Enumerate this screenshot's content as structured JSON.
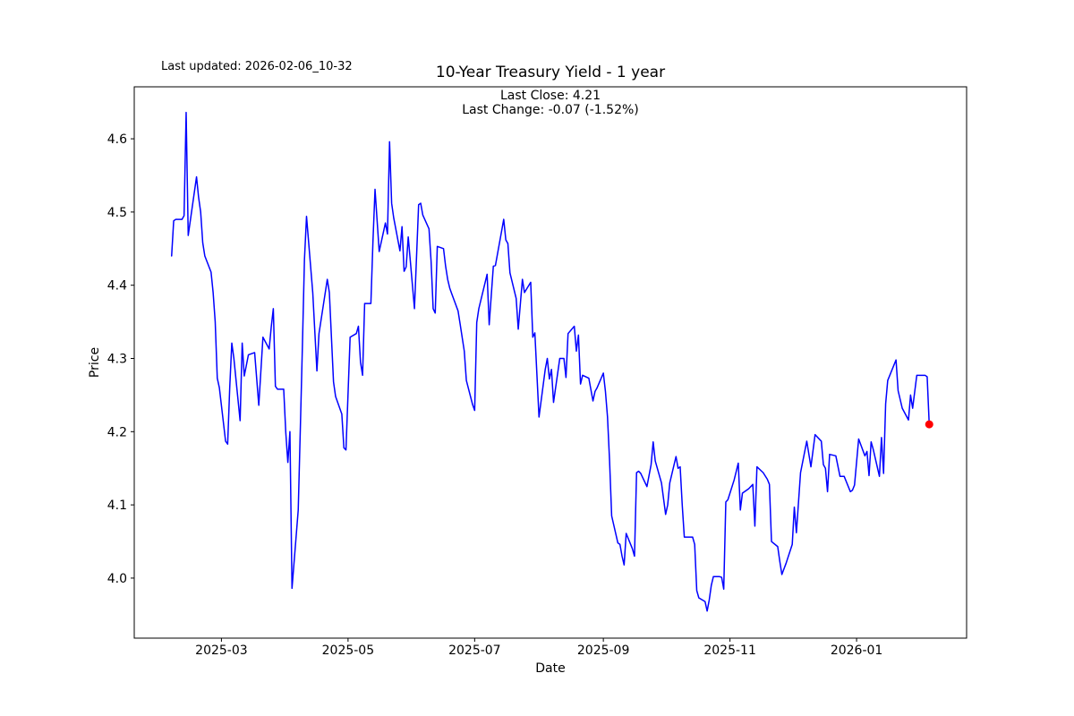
{
  "chart_data": {
    "type": "line",
    "title": "10-Year Treasury Yield - 1 year",
    "last_updated_text": "Last updated: 2026-02-06_10-32",
    "subtitle_last_close": "Last Close: 4.21",
    "subtitle_last_change": "Last Change: -0.07 (-1.52%)",
    "xlabel": "Date",
    "ylabel": "Price",
    "last_close": 4.21,
    "last_change": -0.07,
    "last_change_pct": "-1.52%",
    "line_color": "#0000ff",
    "marker_color": "#ff0000",
    "axis_color": "#000000",
    "legend": "none",
    "grid": false,
    "xlim": [
      "2025-01-18",
      "2026-02-23"
    ],
    "ylim": [
      3.918,
      4.671
    ],
    "x_ticks": [
      {
        "label": "2025-03",
        "date": "2025-03-01"
      },
      {
        "label": "2025-05",
        "date": "2025-05-01"
      },
      {
        "label": "2025-07",
        "date": "2025-07-01"
      },
      {
        "label": "2025-09",
        "date": "2025-09-01"
      },
      {
        "label": "2025-11",
        "date": "2025-11-01"
      },
      {
        "label": "2026-01",
        "date": "2026-01-01"
      }
    ],
    "y_ticks": [
      {
        "label": "4.0",
        "value": 4.0
      },
      {
        "label": "4.1",
        "value": 4.1
      },
      {
        "label": "4.2",
        "value": 4.2
      },
      {
        "label": "4.3",
        "value": 4.3
      },
      {
        "label": "4.4",
        "value": 4.4
      },
      {
        "label": "4.5",
        "value": 4.5
      },
      {
        "label": "4.6",
        "value": 4.6
      }
    ],
    "series": [
      {
        "name": "10-Year Treasury Yield",
        "points": [
          [
            "2025-02-05",
            4.44
          ],
          [
            "2025-02-06",
            4.488
          ],
          [
            "2025-02-07",
            4.49
          ],
          [
            "2025-02-10",
            4.49
          ],
          [
            "2025-02-11",
            4.495
          ],
          [
            "2025-02-12",
            4.636
          ],
          [
            "2025-02-13",
            4.468
          ],
          [
            "2025-02-17",
            4.548
          ],
          [
            "2025-02-18",
            4.52
          ],
          [
            "2025-02-19",
            4.5
          ],
          [
            "2025-02-20",
            4.458
          ],
          [
            "2025-02-21",
            4.44
          ],
          [
            "2025-02-24",
            4.418
          ],
          [
            "2025-02-25",
            4.39
          ],
          [
            "2025-02-26",
            4.35
          ],
          [
            "2025-02-27",
            4.273
          ],
          [
            "2025-02-28",
            4.26
          ],
          [
            "2025-03-03",
            4.187
          ],
          [
            "2025-03-04",
            4.183
          ],
          [
            "2025-03-05",
            4.26
          ],
          [
            "2025-03-06",
            4.321
          ],
          [
            "2025-03-07",
            4.3
          ],
          [
            "2025-03-10",
            4.215
          ],
          [
            "2025-03-11",
            4.321
          ],
          [
            "2025-03-12",
            4.276
          ],
          [
            "2025-03-14",
            4.305
          ],
          [
            "2025-03-17",
            4.308
          ],
          [
            "2025-03-19",
            4.236
          ],
          [
            "2025-03-21",
            4.329
          ],
          [
            "2025-03-24",
            4.313
          ],
          [
            "2025-03-25",
            4.343
          ],
          [
            "2025-03-26",
            4.368
          ],
          [
            "2025-03-27",
            4.262
          ],
          [
            "2025-03-28",
            4.258
          ],
          [
            "2025-03-31",
            4.258
          ],
          [
            "2025-04-01",
            4.199
          ],
          [
            "2025-04-02",
            4.158
          ],
          [
            "2025-04-03",
            4.2
          ],
          [
            "2025-04-04",
            3.986
          ],
          [
            "2025-04-07",
            4.093
          ],
          [
            "2025-04-08",
            4.203
          ],
          [
            "2025-04-09",
            4.316
          ],
          [
            "2025-04-10",
            4.435
          ],
          [
            "2025-04-11",
            4.494
          ],
          [
            "2025-04-14",
            4.39
          ],
          [
            "2025-04-16",
            4.283
          ],
          [
            "2025-04-17",
            4.334
          ],
          [
            "2025-04-21",
            4.408
          ],
          [
            "2025-04-22",
            4.39
          ],
          [
            "2025-04-24",
            4.268
          ],
          [
            "2025-04-25",
            4.248
          ],
          [
            "2025-04-28",
            4.224
          ],
          [
            "2025-04-29",
            4.178
          ],
          [
            "2025-04-30",
            4.175
          ],
          [
            "2025-05-02",
            4.329
          ],
          [
            "2025-05-05",
            4.334
          ],
          [
            "2025-05-06",
            4.344
          ],
          [
            "2025-05-07",
            4.295
          ],
          [
            "2025-05-08",
            4.277
          ],
          [
            "2025-05-09",
            4.375
          ],
          [
            "2025-05-12",
            4.375
          ],
          [
            "2025-05-13",
            4.46
          ],
          [
            "2025-05-14",
            4.531
          ],
          [
            "2025-05-16",
            4.446
          ],
          [
            "2025-05-19",
            4.485
          ],
          [
            "2025-05-20",
            4.47
          ],
          [
            "2025-05-21",
            4.596
          ],
          [
            "2025-05-22",
            4.512
          ],
          [
            "2025-05-23",
            4.492
          ],
          [
            "2025-05-26",
            4.447
          ],
          [
            "2025-05-27",
            4.48
          ],
          [
            "2025-05-28",
            4.419
          ],
          [
            "2025-05-29",
            4.425
          ],
          [
            "2025-05-30",
            4.466
          ],
          [
            "2025-06-02",
            4.368
          ],
          [
            "2025-06-04",
            4.51
          ],
          [
            "2025-06-05",
            4.512
          ],
          [
            "2025-06-06",
            4.496
          ],
          [
            "2025-06-09",
            4.477
          ],
          [
            "2025-06-10",
            4.433
          ],
          [
            "2025-06-11",
            4.368
          ],
          [
            "2025-06-12",
            4.362
          ],
          [
            "2025-06-13",
            4.453
          ],
          [
            "2025-06-16",
            4.45
          ],
          [
            "2025-06-17",
            4.426
          ],
          [
            "2025-06-18",
            4.408
          ],
          [
            "2025-06-19",
            4.396
          ],
          [
            "2025-06-20",
            4.388
          ],
          [
            "2025-06-23",
            4.365
          ],
          [
            "2025-06-24",
            4.347
          ],
          [
            "2025-06-26",
            4.31
          ],
          [
            "2025-06-27",
            4.27
          ],
          [
            "2025-06-30",
            4.237
          ],
          [
            "2025-07-01",
            4.229
          ],
          [
            "2025-07-02",
            4.349
          ],
          [
            "2025-07-03",
            4.368
          ],
          [
            "2025-07-07",
            4.415
          ],
          [
            "2025-07-08",
            4.346
          ],
          [
            "2025-07-10",
            4.426
          ],
          [
            "2025-07-11",
            4.427
          ],
          [
            "2025-07-15",
            4.49
          ],
          [
            "2025-07-16",
            4.462
          ],
          [
            "2025-07-17",
            4.457
          ],
          [
            "2025-07-18",
            4.417
          ],
          [
            "2025-07-21",
            4.382
          ],
          [
            "2025-07-22",
            4.34
          ],
          [
            "2025-07-24",
            4.408
          ],
          [
            "2025-07-25",
            4.39
          ],
          [
            "2025-07-28",
            4.404
          ],
          [
            "2025-07-29",
            4.329
          ],
          [
            "2025-07-30",
            4.335
          ],
          [
            "2025-08-01",
            4.22
          ],
          [
            "2025-08-04",
            4.285
          ],
          [
            "2025-08-05",
            4.3
          ],
          [
            "2025-08-06",
            4.272
          ],
          [
            "2025-08-07",
            4.285
          ],
          [
            "2025-08-08",
            4.24
          ],
          [
            "2025-08-11",
            4.3
          ],
          [
            "2025-08-13",
            4.3
          ],
          [
            "2025-08-14",
            4.274
          ],
          [
            "2025-08-15",
            4.334
          ],
          [
            "2025-08-18",
            4.344
          ],
          [
            "2025-08-19",
            4.31
          ],
          [
            "2025-08-20",
            4.332
          ],
          [
            "2025-08-21",
            4.265
          ],
          [
            "2025-08-22",
            4.277
          ],
          [
            "2025-08-25",
            4.273
          ],
          [
            "2025-08-27",
            4.242
          ],
          [
            "2025-08-28",
            4.255
          ],
          [
            "2025-08-29",
            4.26
          ],
          [
            "2025-09-01",
            4.28
          ],
          [
            "2025-09-02",
            4.255
          ],
          [
            "2025-09-03",
            4.22
          ],
          [
            "2025-09-04",
            4.16
          ],
          [
            "2025-09-05",
            4.085
          ],
          [
            "2025-09-08",
            4.048
          ],
          [
            "2025-09-09",
            4.046
          ],
          [
            "2025-09-10",
            4.03
          ],
          [
            "2025-09-11",
            4.018
          ],
          [
            "2025-09-12",
            4.061
          ],
          [
            "2025-09-15",
            4.04
          ],
          [
            "2025-09-16",
            4.03
          ],
          [
            "2025-09-17",
            4.144
          ],
          [
            "2025-09-18",
            4.146
          ],
          [
            "2025-09-19",
            4.143
          ],
          [
            "2025-09-22",
            4.125
          ],
          [
            "2025-09-24",
            4.155
          ],
          [
            "2025-09-25",
            4.186
          ],
          [
            "2025-09-26",
            4.16
          ],
          [
            "2025-09-29",
            4.13
          ],
          [
            "2025-10-01",
            4.087
          ],
          [
            "2025-10-02",
            4.1
          ],
          [
            "2025-10-03",
            4.13
          ],
          [
            "2025-10-06",
            4.166
          ],
          [
            "2025-10-07",
            4.15
          ],
          [
            "2025-10-08",
            4.152
          ],
          [
            "2025-10-09",
            4.1
          ],
          [
            "2025-10-10",
            4.056
          ],
          [
            "2025-10-13",
            4.056
          ],
          [
            "2025-10-14",
            4.056
          ],
          [
            "2025-10-15",
            4.046
          ],
          [
            "2025-10-16",
            3.983
          ],
          [
            "2025-10-17",
            3.973
          ],
          [
            "2025-10-20",
            3.968
          ],
          [
            "2025-10-21",
            3.955
          ],
          [
            "2025-10-22",
            3.97
          ],
          [
            "2025-10-23",
            3.99
          ],
          [
            "2025-10-24",
            4.002
          ],
          [
            "2025-10-27",
            4.002
          ],
          [
            "2025-10-28",
            4.001
          ],
          [
            "2025-10-29",
            3.985
          ],
          [
            "2025-10-30",
            4.104
          ],
          [
            "2025-10-31",
            4.107
          ],
          [
            "2025-11-03",
            4.134
          ],
          [
            "2025-11-05",
            4.157
          ],
          [
            "2025-11-06",
            4.093
          ],
          [
            "2025-11-07",
            4.116
          ],
          [
            "2025-11-10",
            4.122
          ],
          [
            "2025-11-12",
            4.128
          ],
          [
            "2025-11-13",
            4.071
          ],
          [
            "2025-11-14",
            4.152
          ],
          [
            "2025-11-17",
            4.144
          ],
          [
            "2025-11-19",
            4.135
          ],
          [
            "2025-11-20",
            4.128
          ],
          [
            "2025-11-21",
            4.05
          ],
          [
            "2025-11-24",
            4.043
          ],
          [
            "2025-11-25",
            4.023
          ],
          [
            "2025-11-26",
            4.005
          ],
          [
            "2025-11-28",
            4.02
          ],
          [
            "2025-12-01",
            4.046
          ],
          [
            "2025-12-02",
            4.097
          ],
          [
            "2025-12-03",
            4.062
          ],
          [
            "2025-12-05",
            4.144
          ],
          [
            "2025-12-08",
            4.187
          ],
          [
            "2025-12-10",
            4.152
          ],
          [
            "2025-12-12",
            4.196
          ],
          [
            "2025-12-15",
            4.187
          ],
          [
            "2025-12-16",
            4.155
          ],
          [
            "2025-12-17",
            4.15
          ],
          [
            "2025-12-18",
            4.118
          ],
          [
            "2025-12-19",
            4.169
          ],
          [
            "2025-12-22",
            4.167
          ],
          [
            "2025-12-24",
            4.139
          ],
          [
            "2025-12-26",
            4.139
          ],
          [
            "2025-12-29",
            4.118
          ],
          [
            "2025-12-30",
            4.12
          ],
          [
            "2025-12-31",
            4.127
          ],
          [
            "2026-01-02",
            4.19
          ],
          [
            "2026-01-05",
            4.167
          ],
          [
            "2026-01-06",
            4.173
          ],
          [
            "2026-01-07",
            4.14
          ],
          [
            "2026-01-08",
            4.186
          ],
          [
            "2026-01-09",
            4.176
          ],
          [
            "2026-01-12",
            4.139
          ],
          [
            "2026-01-13",
            4.192
          ],
          [
            "2026-01-14",
            4.143
          ],
          [
            "2026-01-15",
            4.238
          ],
          [
            "2026-01-16",
            4.27
          ],
          [
            "2026-01-20",
            4.298
          ],
          [
            "2026-01-21",
            4.256
          ],
          [
            "2026-01-23",
            4.232
          ],
          [
            "2026-01-26",
            4.216
          ],
          [
            "2026-01-27",
            4.25
          ],
          [
            "2026-01-28",
            4.232
          ],
          [
            "2026-01-30",
            4.277
          ],
          [
            "2026-02-02",
            4.277
          ],
          [
            "2026-02-03",
            4.277
          ],
          [
            "2026-02-04",
            4.275
          ],
          [
            "2026-02-05",
            4.21
          ]
        ]
      }
    ],
    "last_point": {
      "date": "2026-02-05",
      "value": 4.21
    }
  }
}
